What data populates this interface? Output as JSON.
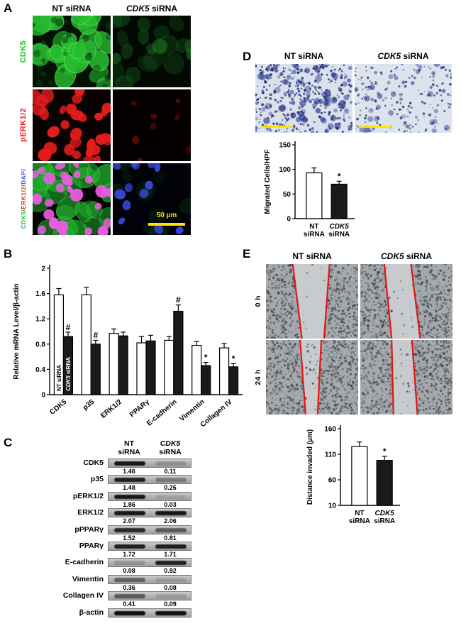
{
  "figure": {
    "panel_a": {
      "label": "A",
      "col_headers": [
        [
          {
            "text": "NT siRNA"
          }
        ],
        [
          {
            "text": "CDK5",
            "italic": true
          },
          {
            "text": " siRNA"
          }
        ]
      ],
      "row_labels": [
        {
          "parts": [
            {
              "text": "CDK5",
              "color": "#1fbf1f"
            }
          ]
        },
        {
          "parts": [
            {
              "text": "pERK1/2",
              "color": "#e82222"
            }
          ]
        },
        {
          "parts": [
            {
              "text": "CDK5",
              "color": "#1fbf1f"
            },
            {
              "text": "/",
              "color": "#1fbf1f"
            },
            {
              "text": "ERK1/2",
              "color": "#e82222"
            },
            {
              "text": "/",
              "color": "#e82222"
            },
            {
              "text": "DAPI",
              "color": "#3f55e8"
            }
          ]
        }
      ],
      "scale_bar": {
        "label": "50 µm",
        "color": "#ffe400"
      }
    },
    "panel_b": {
      "label": "B"
    },
    "panel_c": {
      "label": "C",
      "col_headers": [
        {
          "line1": [
            {
              "text": "NT"
            }
          ],
          "line2": "siRNA"
        },
        {
          "line1": [
            {
              "text": "CDK5",
              "italic": true
            }
          ],
          "line2": "siRNA"
        }
      ],
      "rows": [
        {
          "label": "CDK5",
          "values": [
            "1.46",
            "0.11"
          ],
          "bands": [
            0.95,
            0.2
          ]
        },
        {
          "label": "p35",
          "values": [
            "1.48",
            "0.26"
          ],
          "bands": [
            0.9,
            0.35
          ]
        },
        {
          "label": "pERK1/2",
          "values": [
            "1.86",
            "0.03"
          ],
          "bands": [
            0.95,
            0.1
          ]
        },
        {
          "label": "ERK1/2",
          "values": [
            "2.07",
            "2.06"
          ],
          "bands": [
            0.95,
            0.95
          ]
        },
        {
          "label": "pPPARγ",
          "values": [
            "1.52",
            "0.81"
          ],
          "bands": [
            0.85,
            0.55
          ]
        },
        {
          "label": "PPARγ",
          "values": [
            "1.72",
            "1.71"
          ],
          "bands": [
            0.9,
            0.9
          ]
        },
        {
          "label": "E-cadherin",
          "values": [
            "0.08",
            "0.92"
          ],
          "bands": [
            0.18,
            0.9
          ]
        },
        {
          "label": "Vimentin",
          "values": [
            "0.36",
            "0.08"
          ],
          "bands": [
            0.5,
            0.15
          ]
        },
        {
          "label": "Collagen IV",
          "values": [
            "0.41",
            "0.09"
          ],
          "bands": [
            0.55,
            0.15
          ]
        },
        {
          "label": "β-actin",
          "values": [],
          "bands": [
            1,
            1
          ]
        }
      ]
    },
    "panel_d": {
      "label": "D",
      "col_headers": [
        [
          {
            "text": "NT siRNA"
          }
        ],
        [
          {
            "text": "CDK5",
            "italic": true
          },
          {
            "text": " siRNA"
          }
        ]
      ]
    },
    "panel_e": {
      "label": "E",
      "col_headers": [
        [
          {
            "text": "NT siRNA"
          }
        ],
        [
          {
            "text": "CDK5",
            "italic": true
          },
          {
            "text": " siRNA"
          }
        ]
      ],
      "row_labels": [
        "0 h",
        "24 h"
      ]
    }
  },
  "chart_data": [
    {
      "id": "B",
      "type": "bar",
      "title": "",
      "ylabel": "Relative mRNA Level/β-actin",
      "categories": [
        "CDK5",
        "p35",
        "ERK1/2",
        "PPARγ",
        "E-cadherin",
        "Vimentin",
        "Collagen IV"
      ],
      "series": [
        {
          "name": "NT siRNA",
          "fill": "#ffffff",
          "values": [
            1.58,
            1.58,
            0.97,
            0.82,
            0.86,
            0.78,
            0.74
          ],
          "errors": [
            0.1,
            0.12,
            0.07,
            0.1,
            0.06,
            0.06,
            0.07
          ],
          "sig": [
            "",
            "",
            "",
            "",
            "",
            "",
            ""
          ]
        },
        {
          "name": "CDK5 siRNA",
          "fill": "#1a1a1a",
          "values": [
            0.92,
            0.8,
            0.93,
            0.85,
            1.32,
            0.46,
            0.44
          ],
          "errors": [
            0.07,
            0.06,
            0.06,
            0.09,
            0.1,
            0.05,
            0.05
          ],
          "sig": [
            "#",
            "#",
            "",
            "",
            "#",
            "*",
            "*"
          ]
        }
      ],
      "ylim": [
        0,
        2
      ],
      "yticks": [
        0,
        0.4,
        0.8,
        1.2,
        1.6,
        2
      ],
      "legend_position": "inside-first-bars",
      "grid": false
    },
    {
      "id": "D",
      "type": "bar",
      "title": "",
      "ylabel": "Migrated Cells/HPF",
      "categories": [
        {
          "lines": [
            "NT",
            "siRNA"
          ],
          "italic": [
            false,
            false
          ]
        },
        {
          "lines": [
            "CDK5",
            "siRNA"
          ],
          "italic": [
            true,
            false
          ]
        }
      ],
      "values": [
        93,
        70
      ],
      "errors": [
        10,
        6
      ],
      "fills": [
        "#ffffff",
        "#1a1a1a"
      ],
      "sig": [
        "",
        "*"
      ],
      "ylim": [
        0,
        150
      ],
      "yticks": [
        0,
        50,
        100,
        150
      ],
      "grid": false
    },
    {
      "id": "E",
      "type": "bar",
      "title": "",
      "ylabel": "Distance invaded (µm)",
      "categories": [
        {
          "lines": [
            "NT",
            "siRNA"
          ],
          "italic": [
            false,
            false
          ]
        },
        {
          "lines": [
            "CDK5",
            "siRNA"
          ],
          "italic": [
            true,
            false
          ]
        }
      ],
      "values": [
        125,
        98
      ],
      "errors": [
        9,
        8
      ],
      "fills": [
        "#ffffff",
        "#1a1a1a"
      ],
      "sig": [
        "",
        "*"
      ],
      "ylim": [
        10,
        160
      ],
      "yticks": [
        10,
        60,
        110,
        160
      ],
      "grid": false
    }
  ]
}
